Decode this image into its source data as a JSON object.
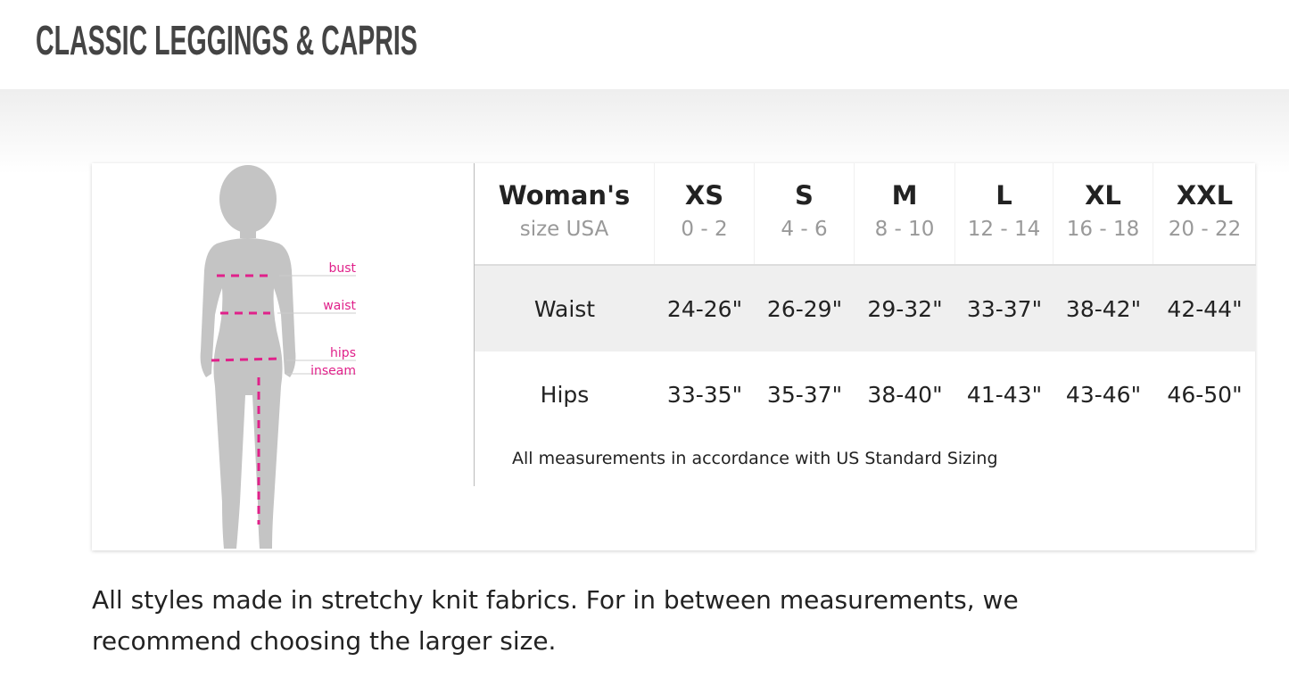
{
  "title": "CLASSIC LEGGINGS & CAPRIS",
  "figure": {
    "labels": [
      "bust",
      "waist",
      "hips",
      "inseam"
    ],
    "accent": "#e0218a",
    "silhouette": "#c4c4c4"
  },
  "table": {
    "header": {
      "label": "Woman's",
      "sublabel": "size USA"
    },
    "sizes": [
      {
        "size": "XS",
        "range": "0 - 2"
      },
      {
        "size": "S",
        "range": "4 - 6"
      },
      {
        "size": "M",
        "range": "8 - 10"
      },
      {
        "size": "L",
        "range": "12 - 14"
      },
      {
        "size": "XL",
        "range": "16 - 18"
      },
      {
        "size": "XXL",
        "range": "20 - 22"
      }
    ],
    "rows": [
      {
        "label": "Waist",
        "values": [
          "24-26\"",
          "26-29\"",
          "29-32\"",
          "33-37\"",
          "38-42\"",
          "42-44\""
        ]
      },
      {
        "label": "Hips",
        "values": [
          "33-35\"",
          "35-37\"",
          "38-40\"",
          "41-43\"",
          "43-46\"",
          "46-50\""
        ]
      }
    ],
    "note": "All measurements in accordance with US Standard Sizing"
  },
  "paragraph": "All styles made in stretchy knit fabrics. For in between measurements, we recommend choosing the larger size."
}
